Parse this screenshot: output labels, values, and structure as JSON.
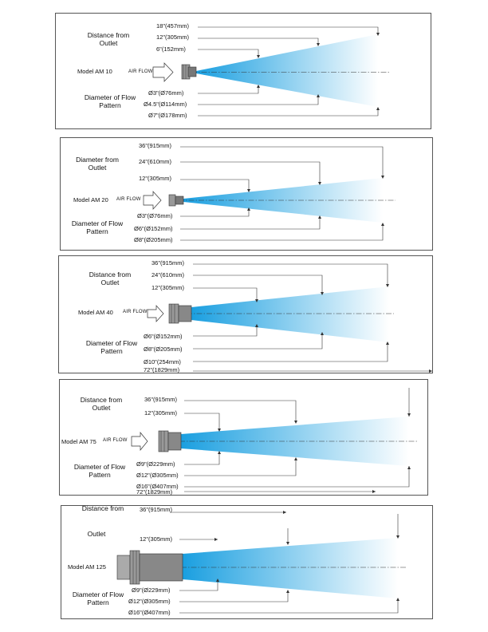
{
  "colors": {
    "flow_start": "#1a9fe0",
    "flow_end": "#ffffff",
    "frame": "#555555",
    "leader": "#333333"
  },
  "panels": [
    {
      "model": "Model AM 10",
      "air_flow": "AIR FLOW",
      "top_label": "Distance from\nOutlet",
      "bottom_label": "Diameter of Flow\nPattern",
      "distances": [
        "18\"(457mm)",
        "12\"(305mm)",
        "6\"(152mm)"
      ],
      "diameters": [
        "Ø3\"(Ø76mm)",
        "Ø4.5\"(Ø114mm)",
        "Ø7\"(Ø178mm)"
      ]
    },
    {
      "model": "Model AM 20",
      "air_flow": "AIR FLOW",
      "top_label": "Diameter from\nOutlet",
      "bottom_label": "Diameter of Flow\nPattern",
      "distances": [
        "36\"(915mm)",
        "24\"(610mm)",
        "12\"(305mm)"
      ],
      "diameters": [
        "Ø3\"(Ø76mm)",
        "Ø6\"(Ø152mm)",
        "Ø8\"(Ø205mm)"
      ]
    },
    {
      "model": "Model AM 40",
      "air_flow": "AIR FLOW",
      "top_label": "Distance from\nOutlet",
      "bottom_label": "Diameter of Flow\nPattern",
      "distances": [
        "36\"(915mm)",
        "24\"(610mm)",
        "12\"(305mm)"
      ],
      "diameters": [
        "Ø6\"(Ø152mm)",
        "Ø8\"(Ø205mm)",
        "Ø10\"(254mm)"
      ],
      "extra": "72\"(1829mm)"
    },
    {
      "model": "Model AM 75",
      "air_flow": "AIR FLOW",
      "top_label": "Distance from\nOutlet",
      "bottom_label": "Diameter of Flow\nPattern",
      "distances": [
        "36\"(915mm)",
        "12\"(305mm)"
      ],
      "diameters": [
        "Ø9\"(Ø229mm)",
        "Ø12\"(Ø305mm)",
        "Ø16\"(Ø407mm)"
      ],
      "extra": "72\"(1829mm)"
    },
    {
      "model": "Model AM 125",
      "top_label_a": "Distance from",
      "top_label_b": "Outlet",
      "bottom_label": "Diameter of Flow\nPattern",
      "distances": [
        "36\"(915mm)",
        "12\"(305mm)"
      ],
      "diameters": [
        "Ø9\"(Ø229mm)",
        "Ø12\"(Ø305mm)",
        "Ø16\"(Ø407mm)"
      ]
    }
  ]
}
